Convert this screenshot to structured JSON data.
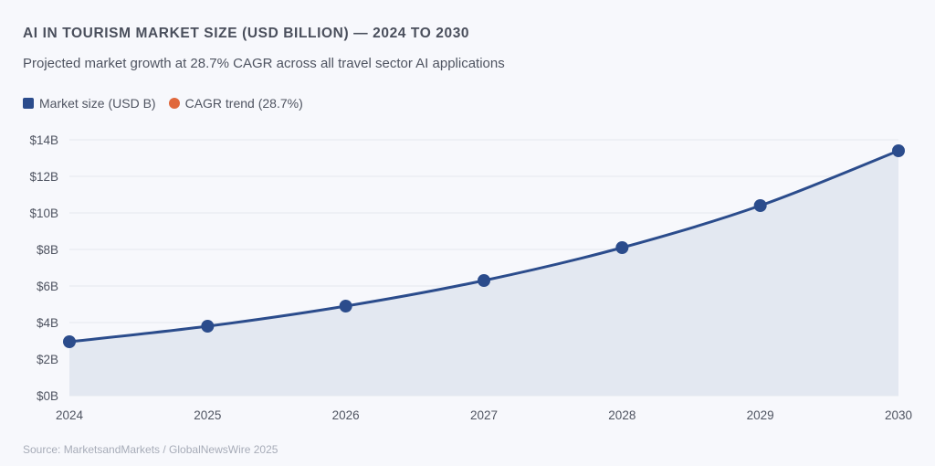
{
  "chart_data": {
    "type": "area",
    "title": "AI IN TOURISM MARKET SIZE (USD BILLION) — 2024 TO 2030",
    "subtitle": "Projected market growth at 28.7% CAGR across all travel sector AI applications",
    "source": "Source: MarketsandMarkets / GlobalNewsWire 2025",
    "x": [
      "2024",
      "2025",
      "2026",
      "2027",
      "2028",
      "2029",
      "2030"
    ],
    "series": [
      {
        "name": "Market size (USD B)",
        "color": "#2b4c8c",
        "values": [
          2.95,
          3.8,
          4.9,
          6.3,
          8.1,
          10.4,
          13.4
        ]
      },
      {
        "name": "CAGR trend (28.7%)",
        "color": "#e0683c",
        "style": "dashed",
        "values": [
          2.95,
          3.8,
          4.89,
          6.29,
          8.09,
          10.41,
          13.4
        ]
      }
    ],
    "ylim": [
      0,
      14
    ],
    "yticks": [
      0,
      2,
      4,
      6,
      8,
      10,
      12,
      14
    ],
    "ytick_labels": [
      "$0B",
      "$2B",
      "$4B",
      "$6B",
      "$8B",
      "$10B",
      "$12B",
      "$14B"
    ],
    "grid": true,
    "legend_position": "top-left",
    "area_fill": "#e3e8f1"
  }
}
